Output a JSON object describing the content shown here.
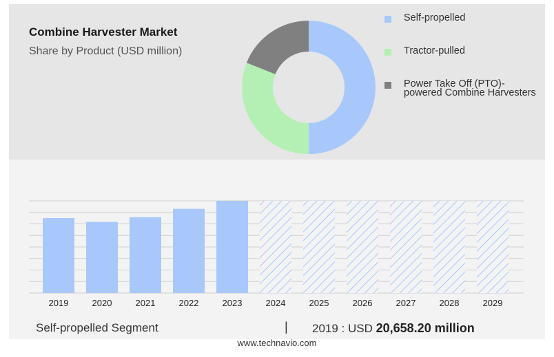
{
  "header": {
    "title": "Combine Harvester Market",
    "subtitle": "Share by Product (USD million)"
  },
  "colors": {
    "self_propelled": "#a8c8fb",
    "tractor_pulled": "#b4f0b4",
    "pto": "#808080",
    "bar": "#a8c8fb",
    "hatch": "#a8c8fb"
  },
  "chart_data": [
    {
      "type": "pie",
      "variant": "donut",
      "categories": [
        "Self-propelled",
        "Tractor-pulled",
        "Power Take Off (PTO)-powered Combine Harvesters"
      ],
      "values": [
        50,
        31,
        19
      ],
      "legend_position": "right"
    },
    {
      "type": "bar",
      "categories": [
        "2019",
        "2020",
        "2021",
        "2022",
        "2023",
        "2024",
        "2025",
        "2026",
        "2027",
        "2028",
        "2029"
      ],
      "values": [
        20658.2,
        19600,
        20900,
        23200,
        25400,
        null,
        null,
        null,
        null,
        null,
        null
      ],
      "forecast_years": [
        "2024",
        "2025",
        "2026",
        "2027",
        "2028",
        "2029"
      ],
      "grid": true
    }
  ],
  "summary": {
    "segment": "Self-propelled Segment",
    "separator": "|",
    "prefix": "2019 : USD",
    "value": "20,658.20 million"
  },
  "footer": "www.technavio.com"
}
